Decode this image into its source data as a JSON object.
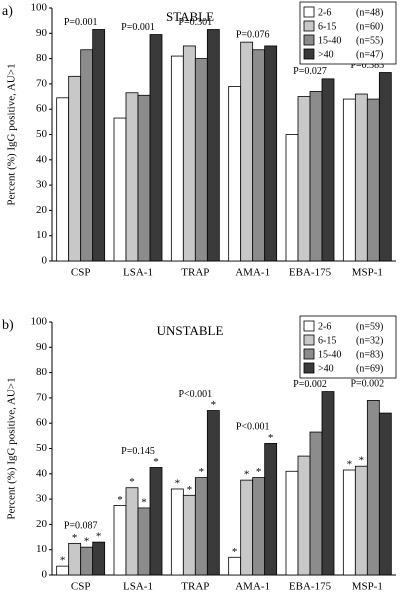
{
  "chart_data": [
    {
      "type": "bar",
      "panel": "a)",
      "title": "STABLE",
      "ylabel": "Percent (%) IgG positive, AU>1",
      "categories": [
        "CSP",
        "LSA-1",
        "TRAP",
        "AMA-1",
        "EBA-175",
        "MSP-1"
      ],
      "p_labels": [
        "P=0.001",
        "P=0.001",
        "P=0.301",
        "P=0.076",
        "P=0.027",
        "P=0.383"
      ],
      "series": [
        {
          "name": "2-6",
          "n_label": "(n=48)",
          "color": "#ffffff",
          "values": [
            64.5,
            56.5,
            81,
            69,
            50,
            64
          ]
        },
        {
          "name": "6-15",
          "n_label": "(n=60)",
          "color": "#c8c8c8",
          "values": [
            73,
            66.5,
            85,
            86.5,
            65,
            66
          ]
        },
        {
          "name": "15-40",
          "n_label": "(n=55)",
          "color": "#8c8c8c",
          "values": [
            83.5,
            65.5,
            80,
            83.5,
            67,
            64
          ]
        },
        {
          "name": ">40",
          "n_label": "(n=47)",
          "color": "#3a3a3a",
          "values": [
            91.5,
            89.5,
            91.5,
            85,
            72,
            74.5
          ]
        }
      ],
      "ylim": [
        0,
        100
      ],
      "yticks": [
        0,
        10,
        20,
        30,
        40,
        50,
        60,
        70,
        80,
        90,
        100
      ],
      "legend": "upper right"
    },
    {
      "type": "bar",
      "panel": "b)",
      "title": "UNSTABLE",
      "ylabel": "Percent (%) IgG positive, AU>1",
      "categories": [
        "CSP",
        "LSA-1",
        "TRAP",
        "AMA-1",
        "EBA-175",
        "MSP-1"
      ],
      "p_labels": [
        "P=0.087",
        "P=0.145",
        "P<0.001",
        "P<0.001",
        "P=0.002",
        "P=0.002"
      ],
      "series": [
        {
          "name": "2-6",
          "n_label": "(n=59)",
          "color": "#ffffff",
          "values": [
            3.5,
            27.5,
            34,
            7,
            41,
            41.5
          ],
          "markers": [
            "*",
            "*",
            "*",
            "*",
            null,
            "*"
          ]
        },
        {
          "name": "6-15",
          "n_label": "(n=32)",
          "color": "#c8c8c8",
          "values": [
            12.5,
            34.5,
            31.5,
            37.5,
            47,
            43
          ],
          "markers": [
            "*",
            "*",
            "*",
            "*",
            null,
            "*"
          ]
        },
        {
          "name": "15-40",
          "n_label": "(n=83)",
          "color": "#8c8c8c",
          "values": [
            11,
            26.5,
            38.5,
            38.5,
            56.5,
            69
          ],
          "markers": [
            "*",
            "*",
            "*",
            "*",
            null,
            null
          ]
        },
        {
          "name": ">40",
          "n_label": "(n=69)",
          "color": "#3a3a3a",
          "values": [
            13,
            42.5,
            65,
            52,
            72.5,
            64
          ],
          "markers": [
            "*",
            "*",
            "*",
            "*",
            null,
            null
          ]
        }
      ],
      "ylim": [
        0,
        100
      ],
      "yticks": [
        0,
        10,
        20,
        30,
        40,
        50,
        60,
        70,
        80,
        90,
        100
      ],
      "legend": "upper right"
    }
  ]
}
